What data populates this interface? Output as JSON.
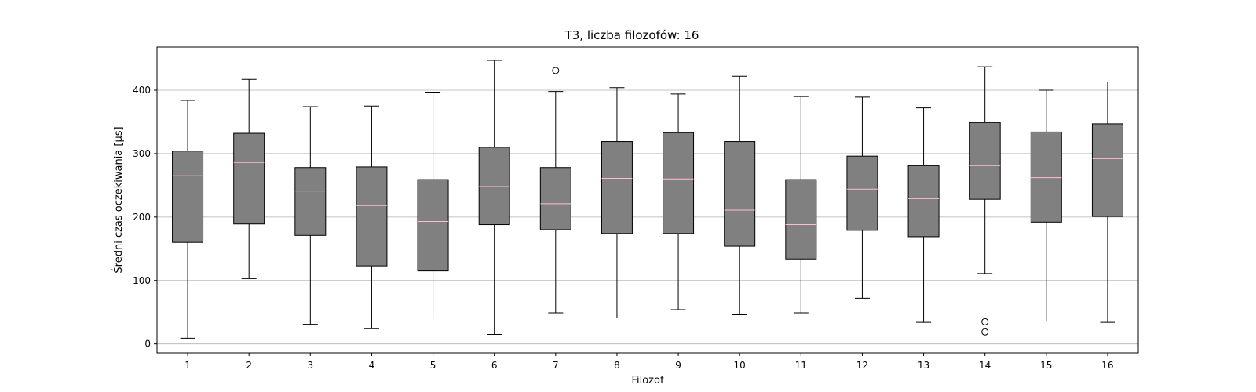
{
  "chart_data": {
    "type": "box",
    "title": "T3, liczba filozofów: 16",
    "xlabel": "Filozof",
    "ylabel": "Średni czas oczekiwania [µs]",
    "ylim": [
      -14,
      468
    ],
    "yticks": [
      0,
      100,
      200,
      300,
      400
    ],
    "grid": "horizontal",
    "categories": [
      "1",
      "2",
      "3",
      "4",
      "5",
      "6",
      "7",
      "8",
      "9",
      "10",
      "11",
      "12",
      "13",
      "14",
      "15",
      "16"
    ],
    "boxes": [
      {
        "whislo": 9,
        "q1": 160,
        "med": 265,
        "q3": 304,
        "whishi": 384,
        "fliers": []
      },
      {
        "whislo": 103,
        "q1": 189,
        "med": 286,
        "q3": 332,
        "whishi": 417,
        "fliers": []
      },
      {
        "whislo": 31,
        "q1": 171,
        "med": 241,
        "q3": 278,
        "whishi": 374,
        "fliers": []
      },
      {
        "whislo": 24,
        "q1": 123,
        "med": 218,
        "q3": 279,
        "whishi": 375,
        "fliers": []
      },
      {
        "whislo": 41,
        "q1": 115,
        "med": 193,
        "q3": 259,
        "whishi": 397,
        "fliers": []
      },
      {
        "whislo": 15,
        "q1": 188,
        "med": 248,
        "q3": 310,
        "whishi": 447,
        "fliers": []
      },
      {
        "whislo": 49,
        "q1": 180,
        "med": 221,
        "q3": 278,
        "whishi": 398,
        "fliers": [
          431
        ]
      },
      {
        "whislo": 41,
        "q1": 174,
        "med": 261,
        "q3": 319,
        "whishi": 404,
        "fliers": []
      },
      {
        "whislo": 54,
        "q1": 174,
        "med": 260,
        "q3": 333,
        "whishi": 394,
        "fliers": []
      },
      {
        "whislo": 46,
        "q1": 154,
        "med": 211,
        "q3": 319,
        "whishi": 422,
        "fliers": []
      },
      {
        "whislo": 49,
        "q1": 134,
        "med": 188,
        "q3": 259,
        "whishi": 390,
        "fliers": []
      },
      {
        "whislo": 72,
        "q1": 179,
        "med": 244,
        "q3": 296,
        "whishi": 389,
        "fliers": []
      },
      {
        "whislo": 34,
        "q1": 169,
        "med": 229,
        "q3": 281,
        "whishi": 372,
        "fliers": []
      },
      {
        "whislo": 111,
        "q1": 228,
        "med": 281,
        "q3": 349,
        "whishi": 437,
        "fliers": [
          35,
          19
        ]
      },
      {
        "whislo": 36,
        "q1": 192,
        "med": 262,
        "q3": 334,
        "whishi": 400,
        "fliers": []
      },
      {
        "whislo": 34,
        "q1": 201,
        "med": 292,
        "q3": 347,
        "whishi": 413,
        "fliers": []
      }
    ],
    "colors": {
      "box_fill": "#808080",
      "median": "#ffc0cb",
      "edge": "#000000",
      "grid": "#b0b0b0"
    }
  }
}
